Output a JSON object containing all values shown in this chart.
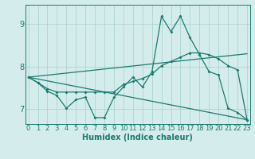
{
  "xlabel": "Humidex (Indice chaleur)",
  "x_ticks": [
    0,
    1,
    2,
    3,
    4,
    5,
    6,
    7,
    8,
    9,
    10,
    11,
    12,
    13,
    14,
    15,
    16,
    17,
    18,
    19,
    20,
    21,
    22,
    23
  ],
  "y_ticks": [
    7,
    8,
    9
  ],
  "xlim": [
    -0.3,
    23.3
  ],
  "ylim": [
    6.65,
    9.45
  ],
  "bg_color": "#d4edec",
  "grid_color": "#aed4d0",
  "line_color": "#1a7a6e",
  "line1_x": [
    0,
    1,
    2,
    3,
    4,
    5,
    6,
    7,
    8,
    9,
    10,
    11,
    12,
    13,
    14,
    15,
    16,
    17,
    18,
    19,
    20,
    21,
    22,
    23
  ],
  "line1_y": [
    7.75,
    7.62,
    7.42,
    7.32,
    7.02,
    7.22,
    7.28,
    6.8,
    6.8,
    7.28,
    7.52,
    7.75,
    7.52,
    7.88,
    9.18,
    8.82,
    9.18,
    8.68,
    8.28,
    7.88,
    7.8,
    7.02,
    6.92,
    6.75
  ],
  "line2_x": [
    0,
    1,
    2,
    3,
    4,
    5,
    6,
    7,
    8,
    9,
    10,
    11,
    12,
    13,
    14,
    15,
    16,
    17,
    18,
    19,
    20,
    21,
    22,
    23
  ],
  "line2_y": [
    7.75,
    7.62,
    7.48,
    7.4,
    7.4,
    7.4,
    7.4,
    7.4,
    7.4,
    7.4,
    7.58,
    7.65,
    7.72,
    7.82,
    8.02,
    8.12,
    8.22,
    8.32,
    8.32,
    8.28,
    8.18,
    8.02,
    7.92,
    6.75
  ],
  "line3_x": [
    0,
    23
  ],
  "line3_y": [
    7.75,
    8.3
  ],
  "line4_x": [
    0,
    23
  ],
  "line4_y": [
    7.75,
    6.75
  ],
  "figsize": [
    3.2,
    2.0
  ],
  "dpi": 100
}
